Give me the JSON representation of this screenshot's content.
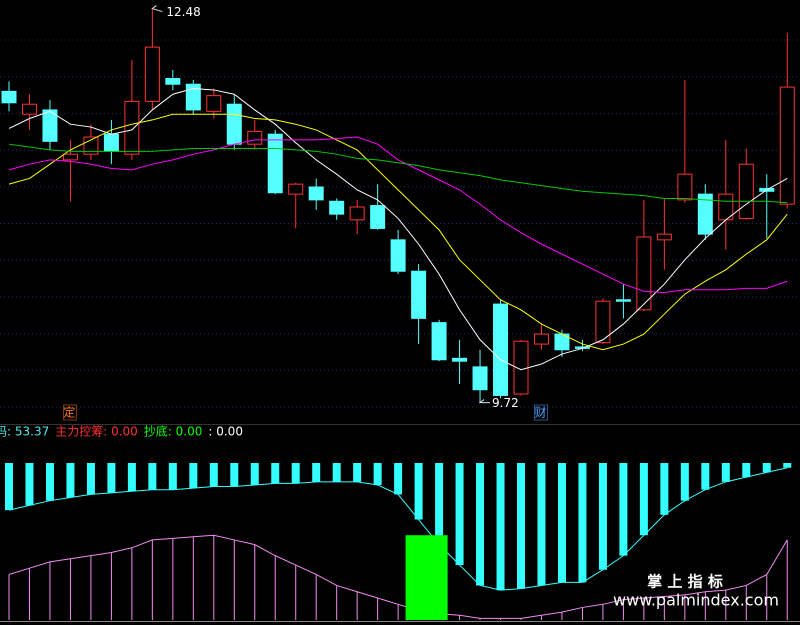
{
  "chart_data": [
    {
      "type": "candlestick",
      "categories": [
        null,
        null,
        null,
        null,
        null,
        null,
        null,
        null,
        null,
        null,
        null,
        null,
        null,
        null,
        null,
        null,
        null,
        null,
        null,
        null,
        null,
        null,
        null,
        null,
        null,
        null,
        null,
        null,
        null,
        null,
        null,
        null,
        null,
        null,
        null,
        null,
        null,
        null,
        null
      ],
      "open": [
        11.9,
        11.74,
        11.77,
        11.42,
        11.46,
        11.6,
        11.46,
        11.83,
        11.99,
        11.95,
        11.76,
        11.81,
        11.53,
        11.6,
        11.18,
        11.23,
        11.13,
        11.0,
        11.1,
        10.86,
        10.64,
        10.28,
        10.03,
        9.97,
        10.41,
        9.78,
        10.13,
        10.2,
        10.11,
        10.14,
        10.44,
        10.37,
        10.86,
        11.14,
        11.18,
        11.0,
        11.01,
        11.22,
        11.11
      ],
      "high": [
        11.97,
        11.88,
        11.84,
        11.56,
        11.67,
        11.7,
        12.12,
        12.48,
        12.05,
        11.98,
        11.92,
        11.88,
        11.7,
        11.63,
        11.26,
        11.29,
        11.15,
        11.14,
        11.25,
        10.93,
        10.69,
        10.3,
        10.16,
        10.09,
        10.44,
        10.16,
        10.27,
        10.23,
        10.16,
        10.45,
        10.55,
        11.14,
        11.15,
        11.98,
        11.25,
        11.56,
        11.5,
        11.32,
        12.31
      ],
      "low": [
        11.76,
        11.63,
        11.49,
        11.13,
        11.42,
        11.39,
        11.42,
        11.77,
        11.91,
        11.74,
        11.71,
        11.49,
        11.49,
        11.18,
        10.94,
        11.07,
        11.0,
        10.9,
        10.93,
        10.62,
        10.13,
        10.01,
        9.85,
        9.72,
        9.75,
        9.77,
        10.09,
        10.04,
        10.08,
        10.13,
        10.31,
        10.36,
        10.65,
        11.12,
        10.86,
        10.79,
        11.0,
        10.87,
        11.08
      ],
      "close": [
        11.82,
        11.81,
        11.55,
        11.46,
        11.58,
        11.48,
        11.83,
        12.21,
        11.95,
        11.77,
        11.87,
        11.53,
        11.62,
        11.19,
        11.25,
        11.14,
        11.04,
        11.09,
        10.94,
        10.64,
        10.31,
        10.02,
        10.01,
        9.81,
        9.77,
        10.15,
        10.2,
        10.09,
        10.1,
        10.43,
        10.43,
        10.88,
        10.9,
        11.32,
        10.9,
        11.18,
        11.39,
        11.2,
        11.93
      ],
      "up_color": "#ff3232",
      "down_color": "#54ffff",
      "ylim": [
        9.57,
        12.54
      ],
      "series": [
        {
          "color": "#ffffff",
          "values": [
            11.64,
            11.71,
            11.76,
            11.67,
            11.65,
            11.6,
            11.63,
            11.77,
            11.88,
            11.92,
            11.91,
            11.88,
            11.77,
            11.67,
            11.54,
            11.42,
            11.32,
            11.21,
            11.14,
            11.01,
            10.83,
            10.62,
            10.37,
            10.16,
            10.02,
            9.95,
            9.99,
            10.06,
            10.1,
            10.16,
            10.27,
            10.41,
            10.55,
            10.72,
            10.87,
            11.0,
            11.11,
            11.21,
            11.29
          ]
        },
        {
          "color": "#ffff00",
          "values": [
            11.25,
            11.29,
            11.39,
            11.49,
            11.56,
            11.63,
            11.67,
            11.7,
            11.74,
            11.74,
            11.74,
            11.74,
            11.71,
            11.7,
            11.67,
            11.63,
            11.56,
            11.49,
            11.35,
            11.21,
            11.07,
            10.93,
            10.72,
            10.58,
            10.44,
            10.37,
            10.27,
            10.2,
            10.13,
            10.09,
            10.13,
            10.2,
            10.34,
            10.48,
            10.57,
            10.65,
            10.76,
            10.86,
            11.04
          ]
        },
        {
          "color": "#ff00ff",
          "values": [
            11.35,
            11.39,
            11.42,
            11.41,
            11.39,
            11.36,
            11.35,
            11.39,
            11.42,
            11.46,
            11.49,
            11.53,
            11.56,
            11.56,
            11.56,
            11.56,
            11.57,
            11.58,
            11.53,
            11.42,
            11.35,
            11.28,
            11.21,
            11.11,
            11.0,
            10.91,
            10.83,
            10.76,
            10.69,
            10.62,
            10.55,
            10.5,
            10.49,
            10.51,
            10.51,
            10.51,
            10.52,
            10.52,
            10.57
          ]
        },
        {
          "color": "#00c800",
          "values": [
            11.53,
            11.51,
            11.49,
            11.48,
            11.48,
            11.48,
            11.48,
            11.48,
            11.49,
            11.5,
            11.5,
            11.5,
            11.5,
            11.5,
            11.49,
            11.48,
            11.46,
            11.43,
            11.42,
            11.4,
            11.38,
            11.35,
            11.33,
            11.31,
            11.28,
            11.26,
            11.24,
            11.22,
            11.2,
            11.19,
            11.18,
            11.17,
            11.15,
            11.15,
            11.14,
            11.13,
            11.13,
            11.13,
            11.12
          ]
        }
      ],
      "max_label": "12.48",
      "min_label": "9.72",
      "markers": [
        {
          "text": "定",
          "index": 3,
          "color": "#ff7a1a"
        },
        {
          "text": "财",
          "index": 26,
          "color": "#4da6ff"
        }
      ]
    },
    {
      "type": "indicator-bar",
      "legend": [
        {
          "text": "码: 53.37",
          "color": "#4fe8e8"
        },
        {
          "text": "主力控筹: 0.00",
          "color": "#ff3030"
        },
        {
          "text": "抄底: 0.00",
          "color": "#00ff00"
        },
        {
          "text": ": 0.00",
          "color": "#ffffff"
        }
      ],
      "ylim": [
        0,
        100
      ],
      "series": [
        {
          "color": "#33ffff",
          "base": "top",
          "values": [
            70,
            73,
            76,
            78,
            80,
            81,
            82,
            83,
            83,
            84,
            85,
            85,
            86,
            87,
            87,
            88,
            88,
            88,
            86,
            80,
            64,
            48,
            35,
            22,
            19,
            20,
            22,
            24,
            24,
            32,
            41,
            54,
            67,
            76,
            83,
            88,
            91,
            94,
            97
          ]
        },
        {
          "color": "#f08cf0",
          "base": "bottom",
          "values": [
            29,
            33,
            37,
            39,
            41,
            43,
            46,
            51,
            52,
            53,
            54,
            51,
            48,
            41,
            35,
            29,
            22,
            18,
            14,
            10,
            6,
            4,
            3,
            1,
            1,
            1,
            3,
            5,
            8,
            10,
            13,
            14,
            15,
            16,
            18,
            19,
            22,
            29,
            51
          ]
        },
        {
          "color": "#00ff00",
          "base": "block",
          "values": [
            null,
            null,
            null,
            null,
            null,
            null,
            null,
            null,
            null,
            null,
            null,
            null,
            null,
            null,
            null,
            null,
            null,
            null,
            null,
            null,
            54,
            null,
            null,
            null,
            null,
            null,
            null,
            null,
            null,
            null,
            null,
            null,
            null,
            null,
            null,
            null,
            null,
            null,
            null
          ]
        }
      ]
    }
  ],
  "watermark": {
    "title": "掌 上 指 标",
    "url": "www.palmindex.com"
  }
}
